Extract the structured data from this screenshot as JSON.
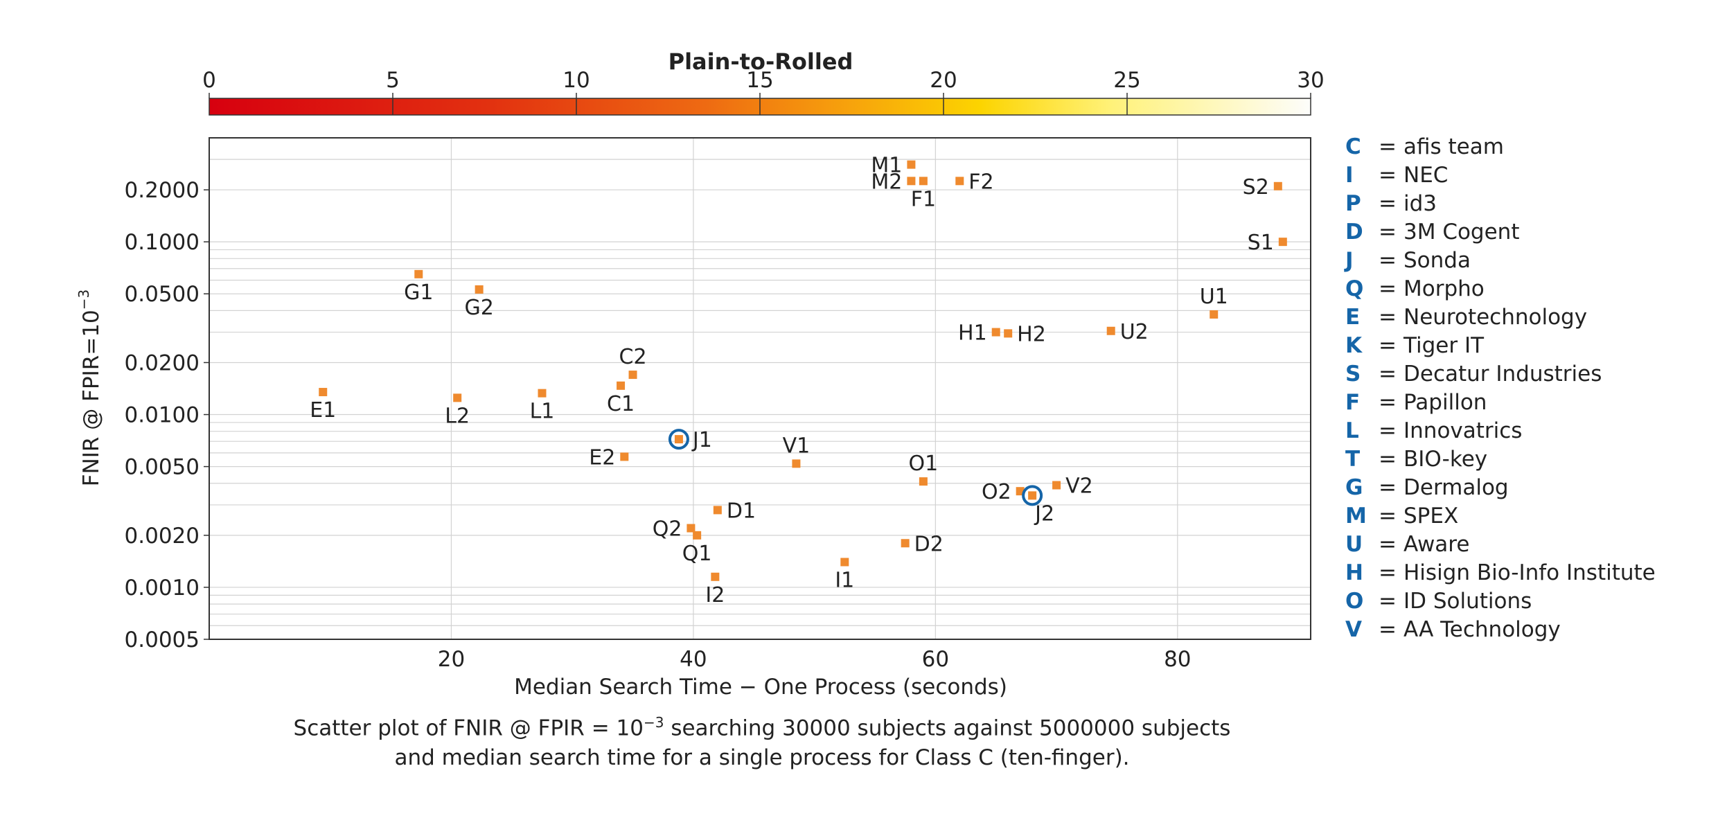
{
  "chart_data": {
    "type": "scatter",
    "title": "",
    "xlabel": "Median Search Time − One Process (seconds)",
    "ylabel_text": "FNIR @ FPIR=10",
    "ylabel_exp": "−3",
    "xlim": [
      0,
      91
    ],
    "ylim": [
      0.0005,
      0.4
    ],
    "y_scale": "log",
    "x_ticks": [
      20,
      40,
      60,
      80
    ],
    "y_ticks": [
      "0.0005",
      "0.0010",
      "0.0020",
      "0.0050",
      "0.0100",
      "0.0200",
      "0.0500",
      "0.1000",
      "0.2000"
    ],
    "grid": true,
    "colorbar": {
      "title": "Plain-to-Rolled",
      "ticks": [
        "0",
        "5",
        "10",
        "15",
        "20",
        "25",
        "30"
      ],
      "range": [
        0,
        30
      ]
    },
    "points": [
      {
        "label": "M1",
        "x": 58.0,
        "y": 0.28,
        "label_pos": "left"
      },
      {
        "label": "M2",
        "x": 58.0,
        "y": 0.225,
        "label_pos": "left"
      },
      {
        "label": "F1",
        "x": 59.0,
        "y": 0.225,
        "label_pos": "below"
      },
      {
        "label": "F2",
        "x": 62.0,
        "y": 0.225,
        "label_pos": "right"
      },
      {
        "label": "S2",
        "x": 88.3,
        "y": 0.21,
        "label_pos": "left"
      },
      {
        "label": "S1",
        "x": 88.7,
        "y": 0.1,
        "label_pos": "left"
      },
      {
        "label": "G1",
        "x": 17.3,
        "y": 0.065,
        "label_pos": "below"
      },
      {
        "label": "G2",
        "x": 22.3,
        "y": 0.053,
        "label_pos": "below"
      },
      {
        "label": "U1",
        "x": 83.0,
        "y": 0.038,
        "label_pos": "above"
      },
      {
        "label": "H1",
        "x": 65.0,
        "y": 0.03,
        "label_pos": "left"
      },
      {
        "label": "H2",
        "x": 66.0,
        "y": 0.0295,
        "label_pos": "right"
      },
      {
        "label": "U2",
        "x": 74.5,
        "y": 0.0305,
        "label_pos": "right"
      },
      {
        "label": "C2",
        "x": 35.0,
        "y": 0.017,
        "label_pos": "above"
      },
      {
        "label": "C1",
        "x": 34.0,
        "y": 0.0147,
        "label_pos": "below"
      },
      {
        "label": "E1",
        "x": 9.4,
        "y": 0.0135,
        "label_pos": "below"
      },
      {
        "label": "L2",
        "x": 20.5,
        "y": 0.0125,
        "label_pos": "below"
      },
      {
        "label": "L1",
        "x": 27.5,
        "y": 0.0133,
        "label_pos": "below"
      },
      {
        "label": "J1",
        "x": 38.8,
        "y": 0.0072,
        "label_pos": "right",
        "circled": true
      },
      {
        "label": "E2",
        "x": 34.3,
        "y": 0.0057,
        "label_pos": "left"
      },
      {
        "label": "V1",
        "x": 48.5,
        "y": 0.0052,
        "label_pos": "above"
      },
      {
        "label": "O1",
        "x": 59.0,
        "y": 0.0041,
        "label_pos": "above"
      },
      {
        "label": "O2",
        "x": 67.0,
        "y": 0.0036,
        "label_pos": "left"
      },
      {
        "label": "J2",
        "x": 68.0,
        "y": 0.0034,
        "label_pos": "below-right",
        "circled": true
      },
      {
        "label": "V2",
        "x": 70.0,
        "y": 0.0039,
        "label_pos": "right"
      },
      {
        "label": "D1",
        "x": 42.0,
        "y": 0.0028,
        "label_pos": "right"
      },
      {
        "label": "Q2",
        "x": 39.8,
        "y": 0.0022,
        "label_pos": "left"
      },
      {
        "label": "Q1",
        "x": 40.3,
        "y": 0.002,
        "label_pos": "below"
      },
      {
        "label": "D2",
        "x": 57.5,
        "y": 0.0018,
        "label_pos": "right"
      },
      {
        "label": "I1",
        "x": 52.5,
        "y": 0.0014,
        "label_pos": "below"
      },
      {
        "label": "I2",
        "x": 41.8,
        "y": 0.00115,
        "label_pos": "below"
      }
    ],
    "marker_color": "#ef8a2e",
    "highlight_color": "#1565a8"
  },
  "legend": [
    {
      "code": "C",
      "name": "afis team"
    },
    {
      "code": "I",
      "name": "NEC"
    },
    {
      "code": "P",
      "name": "id3"
    },
    {
      "code": "D",
      "name": "3M Cogent"
    },
    {
      "code": "J",
      "name": "Sonda"
    },
    {
      "code": "Q",
      "name": "Morpho"
    },
    {
      "code": "E",
      "name": "Neurotechnology"
    },
    {
      "code": "K",
      "name": "Tiger IT"
    },
    {
      "code": "S",
      "name": "Decatur Industries"
    },
    {
      "code": "F",
      "name": "Papillon"
    },
    {
      "code": "L",
      "name": "Innovatrics"
    },
    {
      "code": "T",
      "name": "BIO-key"
    },
    {
      "code": "G",
      "name": "Dermalog"
    },
    {
      "code": "M",
      "name": "SPEX"
    },
    {
      "code": "U",
      "name": "Aware"
    },
    {
      "code": "H",
      "name": "Hisign Bio-Info Institute"
    },
    {
      "code": "O",
      "name": "ID Solutions"
    },
    {
      "code": "V",
      "name": "AA Technology"
    }
  ],
  "legend_separator": "=",
  "caption": {
    "part1": "Scatter plot of FNIR @ FPIR  = 10",
    "exp": "−3",
    "part2": " searching 30000 subjects against 5000000 subjects",
    "line2": "and median search time for a single process for Class C (ten-finger)."
  }
}
